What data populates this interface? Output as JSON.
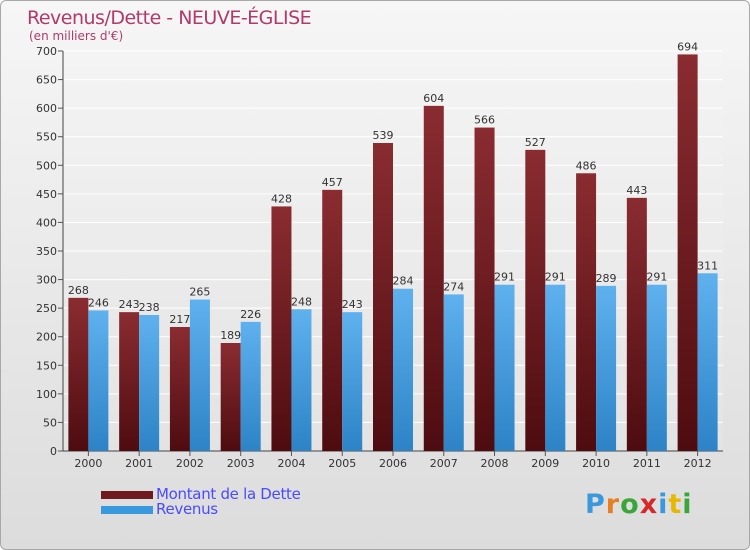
{
  "header": {
    "title": "Revenus/Dette - NEUVE-ÉGLISE",
    "subtitle": "(en milliers d'€)"
  },
  "legend": {
    "items": [
      {
        "label": "Montant de la Dette",
        "color": "#6e1a1e"
      },
      {
        "label": "Revenus",
        "color": "#3a98dc"
      }
    ]
  },
  "logo": {
    "letters": [
      {
        "ch": "P",
        "color": "#3a98dc"
      },
      {
        "ch": "r",
        "color": "#e67e22"
      },
      {
        "ch": "o",
        "color": "#3aa63a"
      },
      {
        "ch": "x",
        "color": "#d62828"
      },
      {
        "ch": "i",
        "color": "#3a98dc"
      },
      {
        "ch": "t",
        "color": "#e6b800"
      },
      {
        "ch": "i",
        "color": "#3aa63a"
      }
    ]
  },
  "chart_data": {
    "type": "bar",
    "categories": [
      "2000",
      "2001",
      "2002",
      "2003",
      "2004",
      "2005",
      "2006",
      "2007",
      "2008",
      "2009",
      "2010",
      "2011",
      "2012"
    ],
    "series": [
      {
        "name": "Montant de la Dette",
        "color": "#6e1a1e",
        "values": [
          268,
          243,
          217,
          189,
          428,
          457,
          539,
          604,
          566,
          527,
          486,
          443,
          694
        ]
      },
      {
        "name": "Revenus",
        "color": "#3a98dc",
        "values": [
          246,
          238,
          265,
          226,
          248,
          243,
          284,
          274,
          291,
          291,
          289,
          291,
          311
        ]
      }
    ],
    "ylim": [
      0,
      700
    ],
    "yticks": [
      0,
      50,
      100,
      150,
      200,
      250,
      300,
      350,
      400,
      450,
      500,
      550,
      600,
      650,
      700
    ],
    "grid": true
  }
}
